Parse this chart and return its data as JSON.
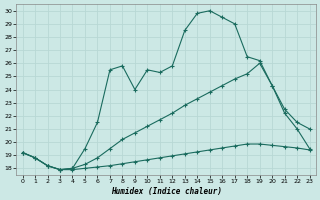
{
  "xlabel": "Humidex (Indice chaleur)",
  "bg_color": "#cce8e5",
  "grid_color": "#b8d8d5",
  "line_color": "#1a6b5e",
  "xlim": [
    -0.5,
    23.5
  ],
  "ylim": [
    17.5,
    30.5
  ],
  "xticks": [
    0,
    1,
    2,
    3,
    4,
    5,
    6,
    7,
    8,
    9,
    10,
    11,
    12,
    13,
    14,
    15,
    16,
    17,
    18,
    19,
    20,
    21,
    22,
    23
  ],
  "yticks": [
    18,
    19,
    20,
    21,
    22,
    23,
    24,
    25,
    26,
    27,
    28,
    29,
    30
  ],
  "line1_x": [
    0,
    1,
    2,
    3,
    4,
    5,
    6,
    7,
    8,
    9,
    10,
    11,
    12,
    13,
    14,
    15,
    16,
    17,
    18,
    19,
    20,
    21,
    22,
    23
  ],
  "line1_y": [
    19.2,
    18.8,
    18.2,
    17.9,
    17.9,
    18.0,
    18.1,
    18.2,
    18.35,
    18.5,
    18.65,
    18.8,
    18.95,
    19.1,
    19.25,
    19.4,
    19.55,
    19.7,
    19.85,
    19.85,
    19.75,
    19.65,
    19.55,
    19.4
  ],
  "line2_x": [
    0,
    1,
    2,
    3,
    4,
    5,
    6,
    7,
    8,
    9,
    10,
    11,
    12,
    13,
    14,
    15,
    16,
    17,
    18,
    19,
    20,
    21,
    22,
    23
  ],
  "line2_y": [
    19.2,
    18.8,
    18.2,
    17.9,
    18.0,
    18.3,
    18.8,
    19.5,
    20.2,
    20.7,
    21.2,
    21.7,
    22.2,
    22.8,
    23.3,
    23.8,
    24.3,
    24.8,
    25.2,
    26.0,
    24.3,
    22.5,
    21.5,
    21.0
  ],
  "line3_x": [
    0,
    1,
    2,
    3,
    4,
    5,
    6,
    7,
    8,
    9,
    10,
    11,
    12,
    13,
    14,
    15,
    16,
    17,
    18,
    19,
    20,
    21,
    22,
    23
  ],
  "line3_y": [
    19.2,
    18.8,
    18.2,
    17.9,
    18.0,
    19.5,
    21.5,
    25.5,
    25.8,
    24.0,
    25.5,
    25.3,
    25.8,
    28.5,
    29.8,
    30.0,
    29.5,
    29.0,
    26.5,
    26.2,
    24.3,
    22.2,
    21.0,
    19.5
  ]
}
